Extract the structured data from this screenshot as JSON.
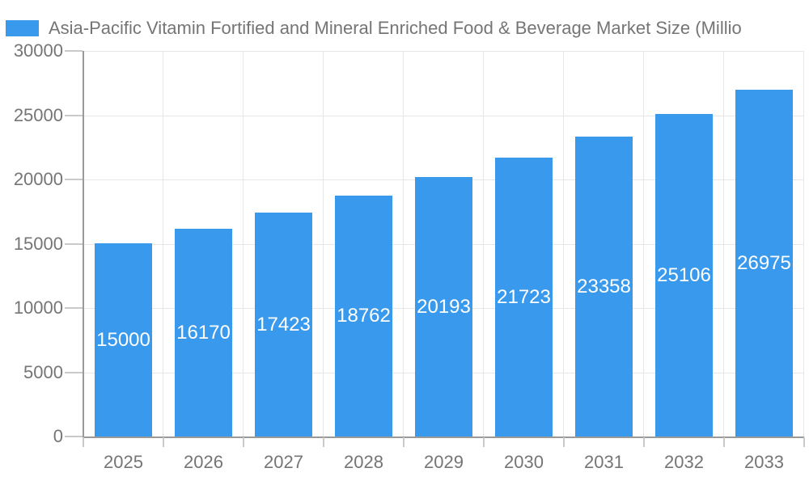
{
  "page": {
    "background": "#ffffff"
  },
  "chart_data": {
    "type": "bar",
    "title": "Asia-Pacific Vitamin Fortified and Mineral Enriched Food & Beverage Market Size (Millio",
    "legend_position": "top-left",
    "legend": [
      {
        "label": "Asia-Pacific Vitamin Fortified and Mineral Enriched Food & Beverage Market Size (Millio",
        "color": "#3999ed"
      }
    ],
    "categories": [
      "2025",
      "2026",
      "2027",
      "2028",
      "2029",
      "2030",
      "2031",
      "2032",
      "2033"
    ],
    "values": [
      15000,
      16170,
      17423,
      18762,
      20193,
      21723,
      23358,
      25106,
      26975
    ],
    "xlabel": "",
    "ylabel": "",
    "ylim": [
      0,
      30000
    ],
    "yticks": [
      0,
      5000,
      10000,
      15000,
      20000,
      25000,
      30000
    ],
    "grid": true,
    "value_labels_position": "inside-center",
    "colors": {
      "bar": "#3999ed",
      "value_label": "#ffffff",
      "axis_text": "#757575",
      "gridline": "#e6e6e6",
      "tick": "#c9c9c9",
      "axis_line": "#9a9a9a"
    }
  }
}
